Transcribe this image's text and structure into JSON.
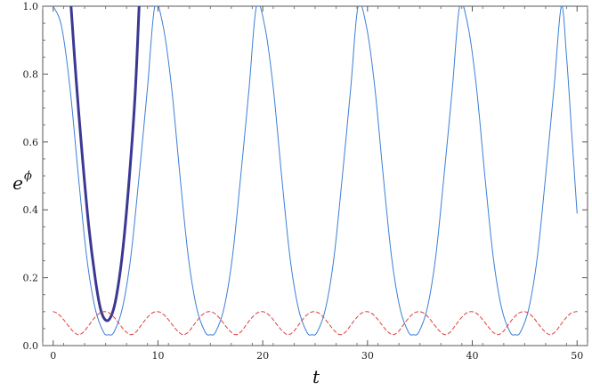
{
  "chart_data": {
    "type": "line",
    "title": "",
    "xlabel": "t",
    "ylabel": "e",
    "ylabel_superscript": "ϕ",
    "xlim": [
      -1,
      51
    ],
    "ylim": [
      0,
      1
    ],
    "xticks": [
      0,
      10,
      20,
      30,
      40,
      50
    ],
    "yticks": [
      0.0,
      0.2,
      0.4,
      0.6,
      0.8,
      1.0
    ],
    "xtick_labels": [
      "0",
      "10",
      "20",
      "30",
      "40",
      "50"
    ],
    "ytick_labels": [
      "0.0",
      "0.2",
      "0.4",
      "0.6",
      "0.8",
      "1.0"
    ],
    "grid": false,
    "legend": "none",
    "series": [
      {
        "style": "thin-solid",
        "color": "#3a7fd6",
        "points": [
          [
            0,
            1.0
          ],
          [
            0.8,
            0.94
          ],
          [
            1.6,
            0.76
          ],
          [
            2.4,
            0.5
          ],
          [
            3.2,
            0.26
          ],
          [
            4.0,
            0.11
          ],
          [
            4.8,
            0.04
          ],
          [
            5.3,
            0.032
          ],
          [
            5.8,
            0.04
          ],
          [
            6.6,
            0.11
          ],
          [
            7.4,
            0.26
          ],
          [
            8.2,
            0.5
          ],
          [
            9.0,
            0.76
          ],
          [
            9.7,
            1.0
          ],
          [
            10.5,
            0.94
          ],
          [
            11.3,
            0.76
          ],
          [
            12.1,
            0.5
          ],
          [
            12.9,
            0.26
          ],
          [
            13.7,
            0.11
          ],
          [
            14.5,
            0.04
          ],
          [
            15.0,
            0.032
          ],
          [
            15.5,
            0.04
          ],
          [
            16.3,
            0.11
          ],
          [
            17.1,
            0.26
          ],
          [
            17.9,
            0.5
          ],
          [
            18.7,
            0.76
          ],
          [
            19.4,
            1.0
          ],
          [
            20.2,
            0.94
          ],
          [
            21.0,
            0.76
          ],
          [
            21.8,
            0.5
          ],
          [
            22.6,
            0.26
          ],
          [
            23.4,
            0.11
          ],
          [
            24.2,
            0.04
          ],
          [
            24.7,
            0.032
          ],
          [
            25.2,
            0.04
          ],
          [
            26.0,
            0.11
          ],
          [
            26.8,
            0.26
          ],
          [
            27.6,
            0.5
          ],
          [
            28.4,
            0.76
          ],
          [
            29.1,
            1.0
          ],
          [
            29.9,
            0.94
          ],
          [
            30.7,
            0.76
          ],
          [
            31.5,
            0.5
          ],
          [
            32.3,
            0.26
          ],
          [
            33.1,
            0.11
          ],
          [
            33.9,
            0.04
          ],
          [
            34.4,
            0.032
          ],
          [
            34.9,
            0.04
          ],
          [
            35.7,
            0.11
          ],
          [
            36.5,
            0.26
          ],
          [
            37.3,
            0.5
          ],
          [
            38.1,
            0.76
          ],
          [
            38.8,
            1.0
          ],
          [
            39.6,
            0.94
          ],
          [
            40.4,
            0.76
          ],
          [
            41.2,
            0.5
          ],
          [
            42.0,
            0.26
          ],
          [
            42.8,
            0.11
          ],
          [
            43.6,
            0.04
          ],
          [
            44.1,
            0.032
          ],
          [
            44.6,
            0.04
          ],
          [
            45.4,
            0.11
          ],
          [
            46.2,
            0.26
          ],
          [
            47.0,
            0.5
          ],
          [
            47.8,
            0.76
          ],
          [
            48.5,
            1.0
          ],
          [
            49.0,
            0.85
          ],
          [
            49.5,
            0.62
          ],
          [
            50.0,
            0.39
          ]
        ]
      },
      {
        "style": "thick-solid",
        "color": "#3b3893",
        "points": [
          [
            1.7,
            1.0
          ],
          [
            2.2,
            0.78
          ],
          [
            2.8,
            0.55
          ],
          [
            3.4,
            0.35
          ],
          [
            4.0,
            0.2
          ],
          [
            4.5,
            0.11
          ],
          [
            5.0,
            0.075
          ],
          [
            5.5,
            0.085
          ],
          [
            6.0,
            0.14
          ],
          [
            6.6,
            0.27
          ],
          [
            7.2,
            0.47
          ],
          [
            7.8,
            0.73
          ],
          [
            8.2,
            1.0
          ]
        ]
      },
      {
        "style": "dashed",
        "color": "#e03c3c",
        "points": [
          [
            0,
            0.1
          ],
          [
            0.4,
            0.095
          ],
          [
            0.9,
            0.08
          ],
          [
            1.4,
            0.06
          ],
          [
            1.9,
            0.042
          ],
          [
            2.4,
            0.032
          ],
          [
            2.9,
            0.04
          ],
          [
            3.4,
            0.06
          ],
          [
            3.9,
            0.08
          ],
          [
            4.4,
            0.095
          ],
          [
            4.9,
            0.1
          ],
          [
            5.4,
            0.095
          ],
          [
            5.9,
            0.08
          ],
          [
            6.4,
            0.06
          ],
          [
            6.9,
            0.042
          ],
          [
            7.4,
            0.032
          ],
          [
            7.9,
            0.04
          ],
          [
            8.4,
            0.06
          ],
          [
            8.9,
            0.08
          ],
          [
            9.4,
            0.095
          ],
          [
            9.9,
            0.1
          ],
          [
            10.4,
            0.095
          ],
          [
            10.9,
            0.08
          ],
          [
            11.4,
            0.06
          ],
          [
            11.9,
            0.042
          ],
          [
            12.4,
            0.032
          ],
          [
            12.9,
            0.04
          ],
          [
            13.4,
            0.06
          ],
          [
            13.9,
            0.08
          ],
          [
            14.4,
            0.095
          ],
          [
            14.9,
            0.1
          ],
          [
            15.4,
            0.095
          ],
          [
            15.9,
            0.08
          ],
          [
            16.4,
            0.06
          ],
          [
            16.9,
            0.042
          ],
          [
            17.4,
            0.032
          ],
          [
            17.9,
            0.04
          ],
          [
            18.4,
            0.06
          ],
          [
            18.9,
            0.08
          ],
          [
            19.4,
            0.095
          ],
          [
            19.9,
            0.1
          ],
          [
            20.4,
            0.095
          ],
          [
            20.9,
            0.08
          ],
          [
            21.4,
            0.06
          ],
          [
            21.9,
            0.042
          ],
          [
            22.4,
            0.032
          ],
          [
            22.9,
            0.04
          ],
          [
            23.4,
            0.06
          ],
          [
            23.9,
            0.08
          ],
          [
            24.4,
            0.095
          ],
          [
            24.9,
            0.1
          ],
          [
            25.4,
            0.095
          ],
          [
            25.9,
            0.08
          ],
          [
            26.4,
            0.06
          ],
          [
            26.9,
            0.042
          ],
          [
            27.4,
            0.032
          ],
          [
            27.9,
            0.04
          ],
          [
            28.4,
            0.06
          ],
          [
            28.9,
            0.08
          ],
          [
            29.4,
            0.095
          ],
          [
            29.9,
            0.1
          ],
          [
            30.4,
            0.095
          ],
          [
            30.9,
            0.08
          ],
          [
            31.4,
            0.06
          ],
          [
            31.9,
            0.042
          ],
          [
            32.4,
            0.032
          ],
          [
            32.9,
            0.04
          ],
          [
            33.4,
            0.06
          ],
          [
            33.9,
            0.08
          ],
          [
            34.4,
            0.095
          ],
          [
            34.9,
            0.1
          ],
          [
            35.4,
            0.095
          ],
          [
            35.9,
            0.08
          ],
          [
            36.4,
            0.06
          ],
          [
            36.9,
            0.042
          ],
          [
            37.4,
            0.032
          ],
          [
            37.9,
            0.04
          ],
          [
            38.4,
            0.06
          ],
          [
            38.9,
            0.08
          ],
          [
            39.4,
            0.095
          ],
          [
            39.9,
            0.1
          ],
          [
            40.4,
            0.095
          ],
          [
            40.9,
            0.08
          ],
          [
            41.4,
            0.06
          ],
          [
            41.9,
            0.042
          ],
          [
            42.4,
            0.032
          ],
          [
            42.9,
            0.04
          ],
          [
            43.4,
            0.06
          ],
          [
            43.9,
            0.08
          ],
          [
            44.4,
            0.095
          ],
          [
            44.9,
            0.1
          ],
          [
            45.4,
            0.095
          ],
          [
            45.9,
            0.08
          ],
          [
            46.4,
            0.06
          ],
          [
            46.9,
            0.042
          ],
          [
            47.4,
            0.032
          ],
          [
            47.9,
            0.04
          ],
          [
            48.4,
            0.06
          ],
          [
            48.9,
            0.08
          ],
          [
            49.4,
            0.095
          ],
          [
            49.9,
            0.1
          ],
          [
            50.0,
            0.1
          ]
        ]
      }
    ]
  }
}
